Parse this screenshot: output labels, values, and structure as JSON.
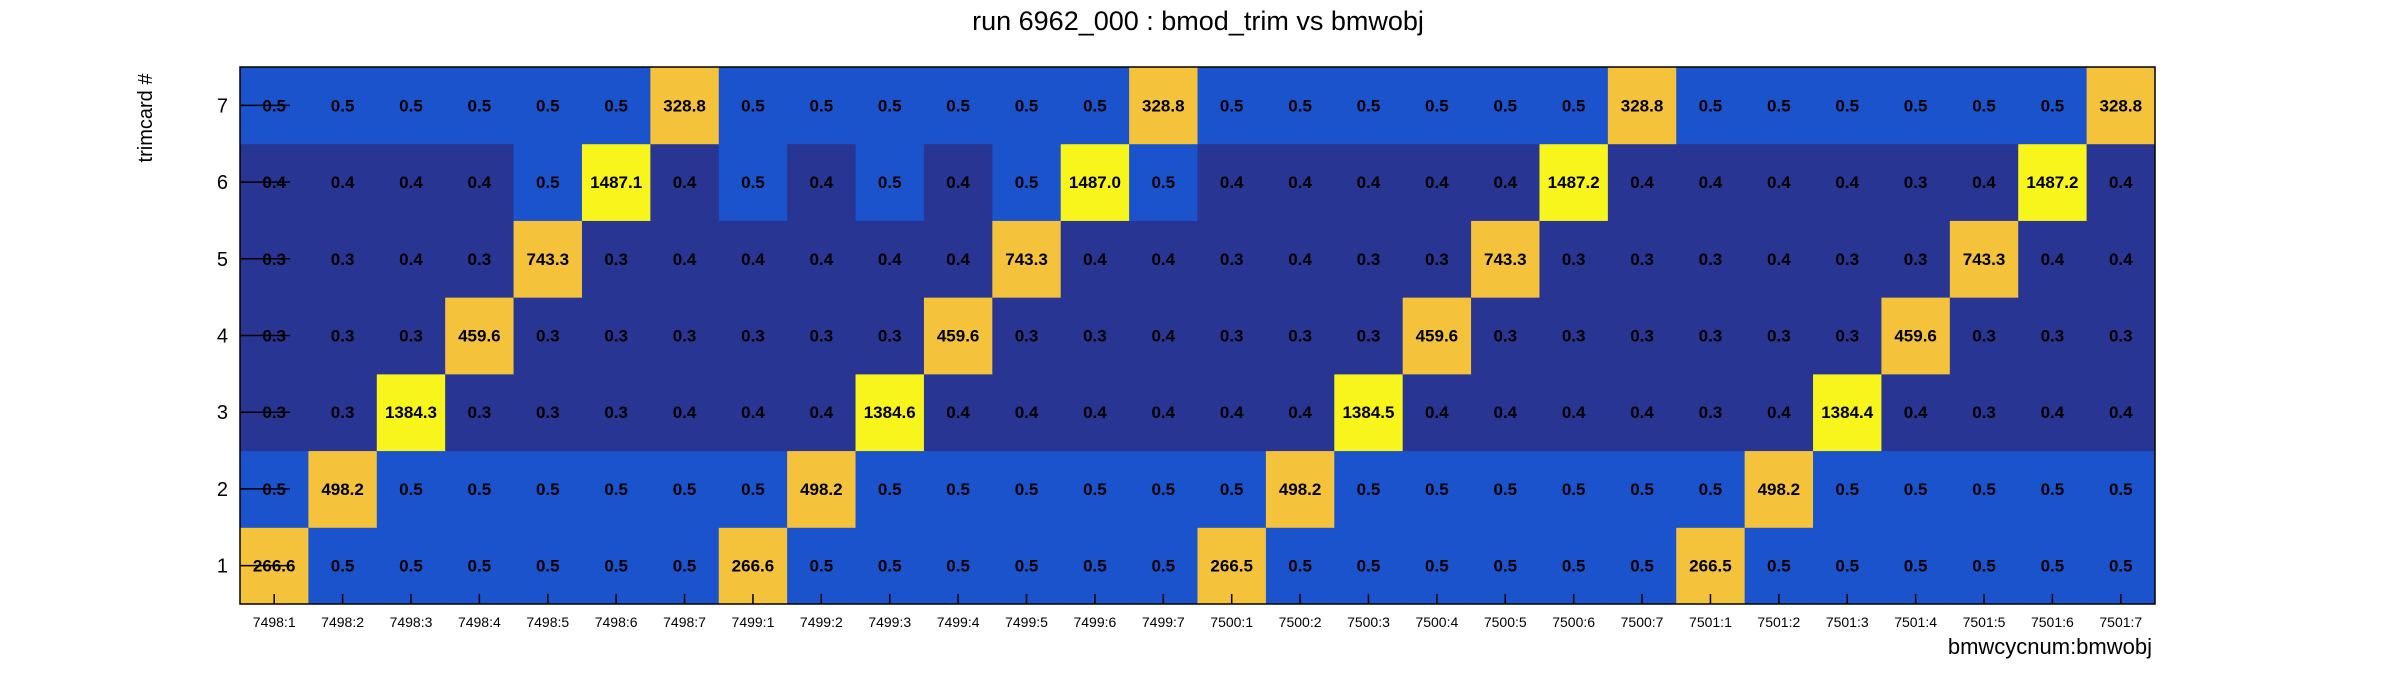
{
  "chart_data": {
    "type": "heatmap",
    "title": "run 6962_000 : bmod_trim vs bmwobj",
    "xlabel": "bmwcycnum:bmwobj",
    "ylabel": "trimcard #",
    "x_categories": [
      "7498:1",
      "7498:2",
      "7498:3",
      "7498:4",
      "7498:5",
      "7498:6",
      "7498:7",
      "7499:1",
      "7499:2",
      "7499:3",
      "7499:4",
      "7499:5",
      "7499:6",
      "7499:7",
      "7500:1",
      "7500:2",
      "7500:3",
      "7500:4",
      "7500:5",
      "7500:6",
      "7500:7",
      "7501:1",
      "7501:2",
      "7501:3",
      "7501:4",
      "7501:5",
      "7501:6",
      "7501:7"
    ],
    "y_categories": [
      "1",
      "2",
      "3",
      "4",
      "5",
      "6",
      "7"
    ],
    "values": [
      [
        266.6,
        0.5,
        0.5,
        0.5,
        0.5,
        0.5,
        0.5,
        266.6,
        0.5,
        0.5,
        0.5,
        0.5,
        0.5,
        0.5,
        266.5,
        0.5,
        0.5,
        0.5,
        0.5,
        0.5,
        0.5,
        266.5,
        0.5,
        0.5,
        0.5,
        0.5,
        0.5,
        0.5
      ],
      [
        0.5,
        498.2,
        0.5,
        0.5,
        0.5,
        0.5,
        0.5,
        0.5,
        498.2,
        0.5,
        0.5,
        0.5,
        0.5,
        0.5,
        0.5,
        498.2,
        0.5,
        0.5,
        0.5,
        0.5,
        0.5,
        0.5,
        498.2,
        0.5,
        0.5,
        0.5,
        0.5,
        0.5
      ],
      [
        0.3,
        0.3,
        1384.3,
        0.3,
        0.3,
        0.3,
        0.4,
        0.4,
        0.4,
        1384.6,
        0.4,
        0.4,
        0.4,
        0.4,
        0.4,
        0.4,
        1384.5,
        0.4,
        0.4,
        0.4,
        0.4,
        0.3,
        0.4,
        1384.4,
        0.4,
        0.3,
        0.4,
        0.4
      ],
      [
        0.3,
        0.3,
        0.3,
        459.6,
        0.3,
        0.3,
        0.3,
        0.3,
        0.3,
        0.3,
        459.6,
        0.3,
        0.3,
        0.4,
        0.3,
        0.3,
        0.3,
        459.6,
        0.3,
        0.3,
        0.3,
        0.3,
        0.3,
        0.3,
        459.6,
        0.3,
        0.3,
        0.3
      ],
      [
        0.3,
        0.3,
        0.4,
        0.3,
        743.3,
        0.3,
        0.4,
        0.4,
        0.4,
        0.4,
        0.4,
        743.3,
        0.4,
        0.4,
        0.3,
        0.4,
        0.3,
        0.3,
        743.3,
        0.3,
        0.3,
        0.3,
        0.4,
        0.3,
        0.3,
        743.3,
        0.4,
        0.4
      ],
      [
        0.4,
        0.4,
        0.4,
        0.4,
        0.5,
        1487.1,
        0.4,
        0.5,
        0.4,
        0.5,
        0.4,
        0.5,
        1487.0,
        0.5,
        0.4,
        0.4,
        0.4,
        0.4,
        0.4,
        1487.2,
        0.4,
        0.4,
        0.4,
        0.4,
        0.3,
        0.4,
        1487.2,
        0.4
      ],
      [
        0.5,
        0.5,
        0.5,
        0.5,
        0.5,
        0.5,
        328.8,
        0.5,
        0.5,
        0.5,
        0.5,
        0.5,
        0.5,
        328.8,
        0.5,
        0.5,
        0.5,
        0.5,
        0.5,
        0.5,
        328.8,
        0.5,
        0.5,
        0.5,
        0.5,
        0.5,
        0.5,
        328.8
      ]
    ],
    "colors": {
      "low": "#283593",
      "mid": "#1a53cc",
      "high_a": "#f4c33b",
      "high_b": "#f8f51c"
    }
  }
}
